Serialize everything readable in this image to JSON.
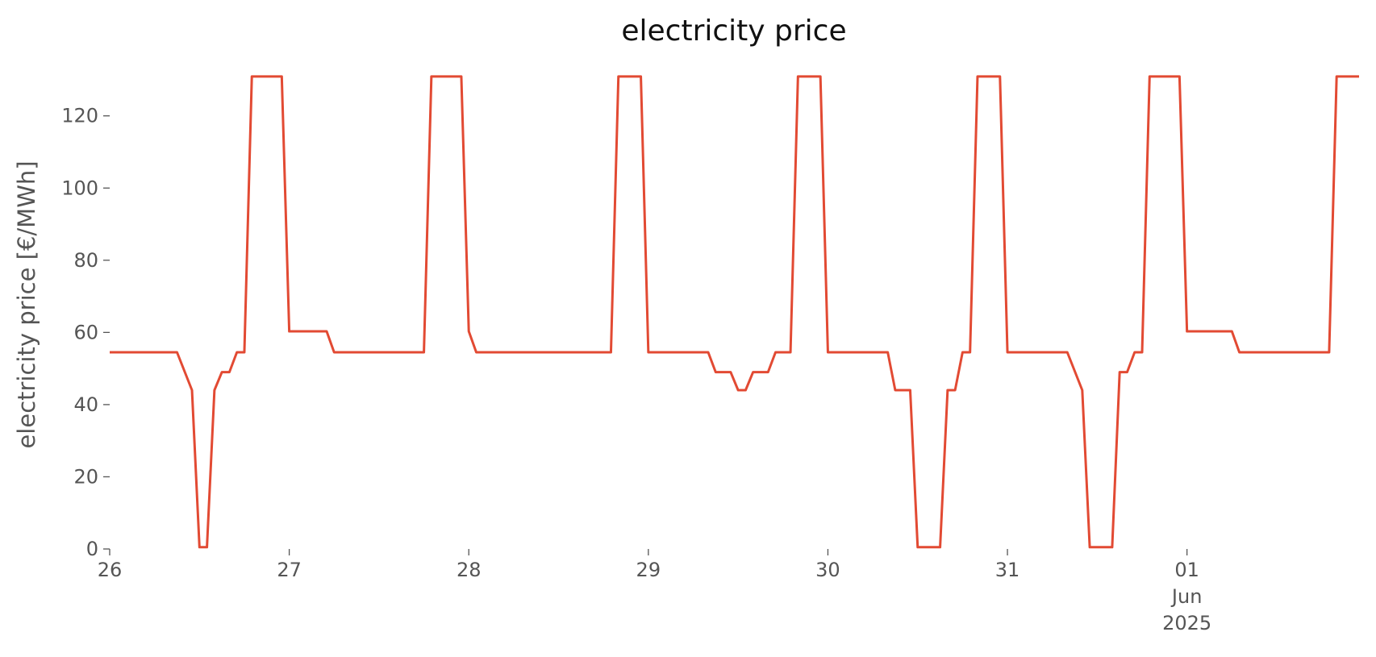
{
  "chart_data": {
    "type": "line",
    "title": "electricity price",
    "ylabel": "electricity price [€/MWh]",
    "x": [
      "2025-05-26T00:00",
      "2025-05-26T09:00",
      "2025-05-26T11:00",
      "2025-05-26T12:00",
      "2025-05-26T13:00",
      "2025-05-26T14:00",
      "2025-05-26T15:00",
      "2025-05-26T16:00",
      "2025-05-26T17:00",
      "2025-05-26T18:00",
      "2025-05-26T19:00",
      "2025-05-26T23:00",
      "2025-05-27T00:00",
      "2025-05-27T05:00",
      "2025-05-27T06:00",
      "2025-05-27T18:00",
      "2025-05-27T19:00",
      "2025-05-27T23:00",
      "2025-05-28T00:00",
      "2025-05-28T01:00",
      "2025-05-28T19:00",
      "2025-05-28T20:00",
      "2025-05-28T23:00",
      "2025-05-29T00:00",
      "2025-05-29T08:00",
      "2025-05-29T09:00",
      "2025-05-29T11:00",
      "2025-05-29T12:00",
      "2025-05-29T13:00",
      "2025-05-29T14:00",
      "2025-05-29T16:00",
      "2025-05-29T17:00",
      "2025-05-29T19:00",
      "2025-05-29T20:00",
      "2025-05-29T23:00",
      "2025-05-30T00:00",
      "2025-05-30T08:00",
      "2025-05-30T09:00",
      "2025-05-30T11:00",
      "2025-05-30T12:00",
      "2025-05-30T15:00",
      "2025-05-30T16:00",
      "2025-05-30T17:00",
      "2025-05-30T18:00",
      "2025-05-30T19:00",
      "2025-05-30T20:00",
      "2025-05-30T23:00",
      "2025-05-31T00:00",
      "2025-05-31T08:00",
      "2025-05-31T10:00",
      "2025-05-31T11:00",
      "2025-05-31T14:00",
      "2025-05-31T15:00",
      "2025-05-31T16:00",
      "2025-05-31T17:00",
      "2025-05-31T18:00",
      "2025-05-31T19:00",
      "2025-05-31T23:00",
      "2025-06-01T00:00",
      "2025-06-01T06:00",
      "2025-06-01T07:00",
      "2025-06-01T19:00",
      "2025-06-01T20:00",
      "2025-06-01T23:00"
    ],
    "series": [
      {
        "name": "electricity price",
        "color": "#e24a33",
        "values": [
          54.5,
          54.5,
          44,
          0.5,
          0.5,
          44,
          49,
          49,
          54.5,
          54.5,
          130.9,
          130.9,
          60.3,
          60.3,
          54.5,
          54.5,
          130.9,
          130.9,
          60.3,
          54.5,
          54.5,
          130.9,
          130.9,
          54.5,
          54.5,
          49,
          49,
          44,
          44,
          49,
          49,
          54.5,
          54.5,
          130.9,
          130.9,
          54.5,
          54.5,
          44,
          44,
          0.5,
          0.5,
          44,
          44,
          54.5,
          54.5,
          130.9,
          130.9,
          54.5,
          54.5,
          44,
          0.5,
          0.5,
          49,
          49,
          54.5,
          54.5,
          130.9,
          130.9,
          60.3,
          60.3,
          54.5,
          54.5,
          130.9,
          130.9
        ]
      }
    ],
    "xlim": [
      "2025-05-26T00:00",
      "2025-06-01T23:00"
    ],
    "xticks": [
      {
        "value": "2025-05-26T00:00",
        "label": "26"
      },
      {
        "value": "2025-05-27T00:00",
        "label": "27"
      },
      {
        "value": "2025-05-28T00:00",
        "label": "28"
      },
      {
        "value": "2025-05-29T00:00",
        "label": "29"
      },
      {
        "value": "2025-05-30T00:00",
        "label": "30"
      },
      {
        "value": "2025-05-31T00:00",
        "label": "31"
      },
      {
        "value": "2025-06-01T00:00",
        "label": "01\nJun\n2025"
      }
    ],
    "ylim": [
      0,
      132
    ],
    "yticks": [
      0,
      20,
      40,
      60,
      80,
      100,
      120
    ],
    "grid": false
  }
}
